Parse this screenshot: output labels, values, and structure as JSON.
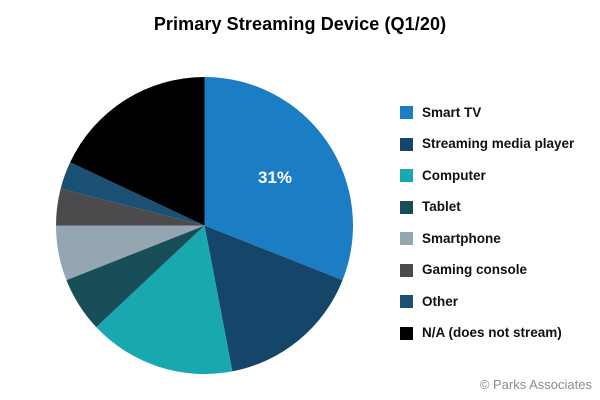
{
  "title": "Primary Streaming Device (Q1/20)",
  "footer": "© Parks Associates",
  "pie_label": "31%",
  "chart_data": {
    "type": "pie",
    "title": "Primary Streaming Device (Q1/20)",
    "start_angle_deg": 0,
    "direction": "clockwise",
    "legend_position": "right",
    "labels": [
      "Smart TV",
      "Streaming media player",
      "Computer",
      "Tablet",
      "Smartphone",
      "Gaming console",
      "Other",
      "N/A (does not stream)"
    ],
    "values": [
      31,
      16,
      16,
      6,
      6,
      4,
      3,
      18
    ],
    "colors": [
      "#1B7EC4",
      "#154669",
      "#1AA8B0",
      "#174E57",
      "#93A6B2",
      "#4D4A4D",
      "#1A5074",
      "#000000"
    ],
    "data_labels_shown": [
      {
        "index": 0,
        "text": "31%"
      }
    ]
  }
}
